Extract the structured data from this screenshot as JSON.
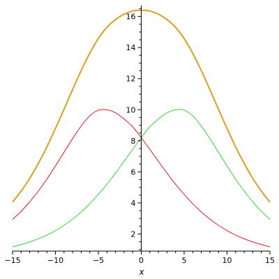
{
  "chart_data": {
    "type": "line",
    "xlabel": "x",
    "ylabel": "",
    "xlim": [
      -15,
      15
    ],
    "ylim": [
      0.9,
      16.7
    ],
    "grid": false,
    "legend": "none",
    "x_ticks": [
      -15,
      -10,
      -5,
      0,
      5,
      10,
      15
    ],
    "y_ticks": [
      2,
      4,
      6,
      8,
      10,
      12,
      14,
      16
    ],
    "series": [
      {
        "color": "#d9a020",
        "x": [
          -15,
          -14,
          -13,
          -12,
          -11,
          -10,
          -9,
          -8,
          -7,
          -6,
          -5,
          -4,
          -3,
          -2,
          -1,
          0,
          1,
          2,
          3,
          4,
          5,
          6,
          7,
          8,
          9,
          10,
          11,
          12,
          13,
          14,
          15
        ],
        "values": [
          4.05,
          4.76,
          5.58,
          6.54,
          7.61,
          8.79,
          10.03,
          11.3,
          12.52,
          13.63,
          14.58,
          15.3,
          15.8,
          16.15,
          16.35,
          16.4,
          16.35,
          16.15,
          15.8,
          15.3,
          14.58,
          13.63,
          12.52,
          11.3,
          10.03,
          8.79,
          7.61,
          6.54,
          5.58,
          4.76,
          4.05
        ]
      },
      {
        "color": "#dd1c1c",
        "x": [
          -15,
          -14,
          -13,
          -12,
          -11,
          -10,
          -9,
          -8,
          -7,
          -6,
          -5,
          -4,
          -3,
          -2,
          -1,
          0,
          1,
          2,
          3,
          4,
          5,
          6,
          7,
          8,
          9,
          10,
          11,
          12,
          13,
          14,
          15
        ],
        "values": [
          2.94,
          3.46,
          4.07,
          4.76,
          5.53,
          6.38,
          7.26,
          8.14,
          8.95,
          9.6,
          9.97,
          9.99,
          9.8,
          9.4,
          8.9,
          8.2,
          7.45,
          6.68,
          5.92,
          5.2,
          4.55,
          3.95,
          3.42,
          2.96,
          2.56,
          2.22,
          1.93,
          1.69,
          1.49,
          1.32,
          1.17
        ]
      },
      {
        "color": "#3cd23c",
        "x": [
          -15,
          -14,
          -13,
          -12,
          -11,
          -10,
          -9,
          -8,
          -7,
          -6,
          -5,
          -4,
          -3,
          -2,
          -1,
          0,
          1,
          2,
          3,
          4,
          5,
          6,
          7,
          8,
          9,
          10,
          11,
          12,
          13,
          14,
          15
        ],
        "values": [
          1.17,
          1.32,
          1.49,
          1.69,
          1.93,
          2.22,
          2.56,
          2.96,
          3.42,
          3.95,
          4.55,
          5.2,
          5.92,
          6.68,
          7.45,
          8.2,
          8.9,
          9.4,
          9.8,
          9.99,
          9.97,
          9.6,
          8.95,
          8.14,
          7.26,
          6.38,
          5.53,
          4.76,
          4.07,
          3.46,
          2.94
        ]
      }
    ]
  }
}
